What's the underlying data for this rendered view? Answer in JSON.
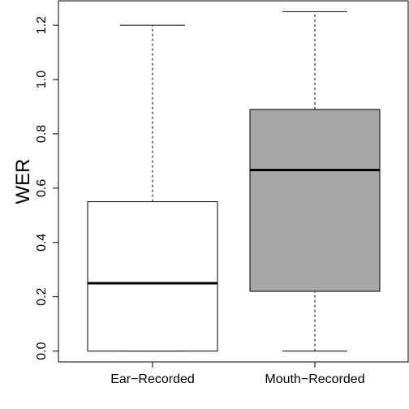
{
  "chart_data": {
    "type": "boxplot",
    "title": "",
    "xlabel": "",
    "ylabel": "WER",
    "ylim": [
      -0.04,
      1.29
    ],
    "yticks": [
      0.0,
      0.2,
      0.4,
      0.6,
      0.8,
      1.0,
      1.2
    ],
    "ytick_labels": [
      "0.0",
      "0.2",
      "0.4",
      "0.6",
      "0.8",
      "1.0",
      "1.2"
    ],
    "grid": false,
    "legend": "none",
    "categories": [
      "Ear−Recorded",
      "Mouth−Recorded"
    ],
    "boxes": [
      {
        "category": "Ear−Recorded",
        "min": 0.0,
        "q1": 0.0,
        "median": 0.25,
        "q3": 0.55,
        "max": 1.2,
        "fill": "#ffffff"
      },
      {
        "category": "Mouth−Recorded",
        "min": 0.0,
        "q1": 0.22,
        "median": 0.667,
        "q3": 0.89,
        "max": 1.25,
        "fill": "#a6a6a6"
      }
    ]
  }
}
